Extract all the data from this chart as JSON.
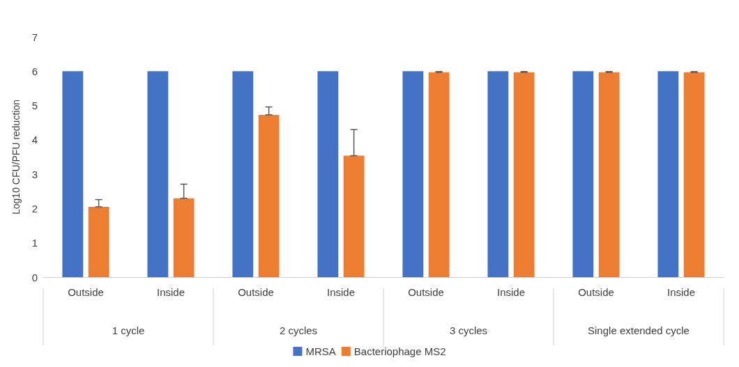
{
  "chart_data": {
    "type": "bar",
    "ylabel": "Log10 CFU/PFU reduction",
    "categories": [
      "Outside",
      "Inside",
      "Outside",
      "Inside",
      "Outside",
      "Inside",
      "Outside",
      "Inside"
    ],
    "series": [
      {
        "name": "MRSA",
        "color": "#4472c4",
        "values": [
          6,
          6,
          6,
          6,
          6,
          6,
          6,
          6
        ]
      },
      {
        "name": "Bacteriophage MS2",
        "color": "#ed7d31",
        "values": [
          2.05,
          2.3,
          4.73,
          3.54,
          5.97,
          5.97,
          5.97,
          5.97
        ],
        "errors": [
          [
            2.05,
            2.26
          ],
          [
            2.3,
            2.71
          ],
          [
            4.73,
            4.96
          ],
          [
            3.54,
            4.3
          ],
          [
            5.97,
            5.99
          ],
          [
            5.97,
            5.99
          ],
          [
            5.97,
            5.99
          ],
          [
            5.97,
            5.99
          ]
        ]
      }
    ],
    "annotations": [
      "1 cycle",
      "2 cycles",
      "3 cycles",
      "Single extended cycle"
    ],
    "ylim": [
      0,
      7
    ],
    "yticks": [
      0,
      1,
      2,
      3,
      4,
      5,
      6,
      7
    ],
    "grid": false,
    "legend": "bottom"
  }
}
